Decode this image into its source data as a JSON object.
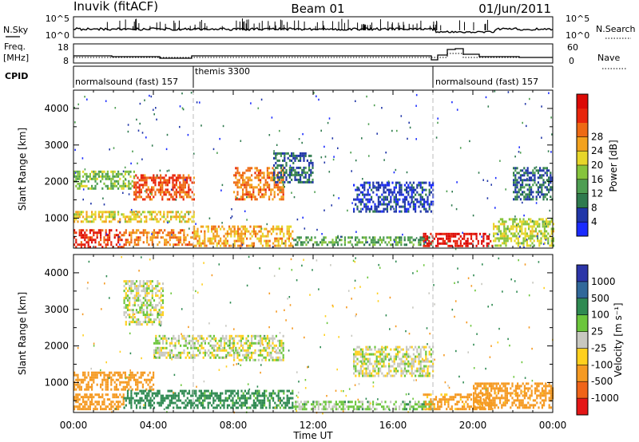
{
  "header": {
    "station": "Inuvik (fitACF)",
    "beam": "Beam 01",
    "date": "01/Jun/2011"
  },
  "strips": {
    "nsky_label": "N.Sky",
    "nsearch_label": "N.Search",
    "nsky_ticks": [
      "10^5",
      "10^0"
    ],
    "nsearch_ticks": [
      "10^5",
      "10^0"
    ],
    "freq_label_1": "Freq.",
    "freq_label_2": "[MHz]",
    "freq_ticks": [
      "18",
      "8"
    ],
    "nave_label": "Nave",
    "nave_ticks": [
      "60",
      "0"
    ],
    "cpid_label": "CPID",
    "cpid_segments": [
      {
        "label": "normalsound (fast) 157",
        "start_hour": 0
      },
      {
        "label": "themis 3300",
        "start_hour": 6
      },
      {
        "label": "normalsound (fast) 157",
        "start_hour": 18
      }
    ]
  },
  "colorbars": {
    "power": {
      "title": "Power [dB]",
      "ticks": [
        "4",
        "8",
        "12",
        "16",
        "20",
        "24",
        "28"
      ],
      "colors": [
        "#1a2bff",
        "#2036a8",
        "#2f7a4e",
        "#4e9e52",
        "#86c43c",
        "#e7d62a",
        "#f3a21e",
        "#ee6a14",
        "#e8260c",
        "#dc0a06"
      ]
    },
    "velocity": {
      "title": "Velocity [m s⁻¹]",
      "ticks": [
        "1000",
        "500",
        "100",
        "25",
        "-25",
        "-100",
        "-500",
        "-1000"
      ],
      "colors": [
        "#2c35a8",
        "#31689a",
        "#2f8a52",
        "#6cc63c",
        "#c8c8c0",
        "#ffd01e",
        "#f59a22",
        "#f06418",
        "#e41616"
      ]
    }
  },
  "chart_data": [
    {
      "type": "heatmap",
      "panel": "power",
      "ylabel": "Slant Range [km]",
      "ylim": [
        180,
        4500
      ],
      "yticks": [
        1000,
        2000,
        3000,
        4000
      ],
      "xlim": [
        0,
        24
      ],
      "colorbar_title": "Power [dB]",
      "colorbar_ticks": [
        4,
        8,
        12,
        16,
        20,
        24,
        28
      ],
      "regions": [
        {
          "x": [
            0,
            2.5
          ],
          "y": [
            200,
            700
          ],
          "value": 26
        },
        {
          "x": [
            2.5,
            6
          ],
          "y": [
            250,
            700
          ],
          "value": 22
        },
        {
          "x": [
            6,
            11
          ],
          "y": [
            250,
            800
          ],
          "value": 20
        },
        {
          "x": [
            11,
            18
          ],
          "y": [
            250,
            500
          ],
          "value": 12
        },
        {
          "x": [
            17.5,
            21
          ],
          "y": [
            250,
            600
          ],
          "value": 28
        },
        {
          "x": [
            21,
            24
          ],
          "y": [
            250,
            1000
          ],
          "value": 16
        },
        {
          "x": [
            0,
            6
          ],
          "y": [
            900,
            1200
          ],
          "value": 18
        },
        {
          "x": [
            3,
            6
          ],
          "y": [
            1500,
            2200
          ],
          "value": 24
        },
        {
          "x": [
            8,
            10.5
          ],
          "y": [
            1500,
            2400
          ],
          "value": 22
        },
        {
          "x": [
            0,
            3
          ],
          "y": [
            1800,
            2300
          ],
          "value": 14
        },
        {
          "x": [
            10,
            12
          ],
          "y": [
            2000,
            2800
          ],
          "value": 8
        },
        {
          "x": [
            14,
            18
          ],
          "y": [
            1200,
            2000
          ],
          "value": 6
        },
        {
          "x": [
            22,
            24
          ],
          "y": [
            1500,
            2400
          ],
          "value": 8
        }
      ]
    },
    {
      "type": "heatmap",
      "panel": "velocity",
      "ylabel": "Slant Range [km]",
      "ylim": [
        180,
        4500
      ],
      "yticks": [
        1000,
        2000,
        3000,
        4000
      ],
      "xlim": [
        0,
        24
      ],
      "colorbar_title": "Velocity [m s⁻¹]",
      "colorbar_ticks": [
        1000,
        500,
        100,
        25,
        -25,
        -100,
        -500,
        -1000
      ],
      "regions": [
        {
          "x": [
            0,
            2.5
          ],
          "y": [
            250,
            700
          ],
          "value": -300
        },
        {
          "x": [
            0,
            4
          ],
          "y": [
            800,
            1300
          ],
          "value": -200
        },
        {
          "x": [
            2.5,
            6
          ],
          "y": [
            300,
            800
          ],
          "value": 200
        },
        {
          "x": [
            4,
            8
          ],
          "y": [
            1700,
            2300
          ],
          "value": 0
        },
        {
          "x": [
            8,
            10.5
          ],
          "y": [
            1600,
            2300
          ],
          "value": 0
        },
        {
          "x": [
            6,
            11
          ],
          "y": [
            300,
            800
          ],
          "value": 150
        },
        {
          "x": [
            11,
            18
          ],
          "y": [
            250,
            500
          ],
          "value": 50
        },
        {
          "x": [
            17.5,
            21
          ],
          "y": [
            250,
            700
          ],
          "value": -150
        },
        {
          "x": [
            20,
            24
          ],
          "y": [
            300,
            1000
          ],
          "value": -400
        },
        {
          "x": [
            2.5,
            4.5
          ],
          "y": [
            2600,
            3800
          ],
          "value": 0
        },
        {
          "x": [
            14,
            18
          ],
          "y": [
            1200,
            2000
          ],
          "value": 0
        }
      ]
    }
  ],
  "xaxis": {
    "title": "Time UT",
    "ticks": [
      "00:00",
      "04:00",
      "08:00",
      "12:00",
      "16:00",
      "20:00",
      "00:00"
    ]
  }
}
